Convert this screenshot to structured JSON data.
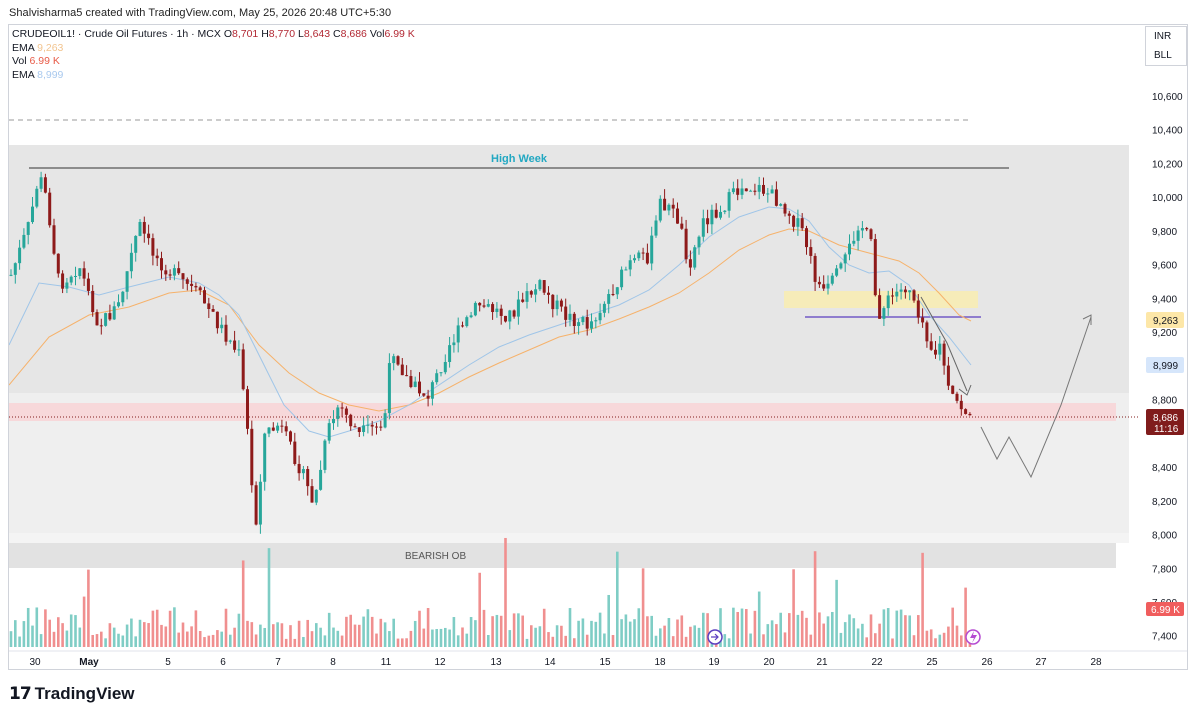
{
  "credit": "Shalvisharma5 created with TradingView.com, May 25, 2026 20:48 UTC+5:30",
  "legend": {
    "symbol": "CRUDEOIL1! · Crude Oil Futures · 1h · MCX",
    "o_label": "O",
    "o_value": "8,701",
    "h_label": "H",
    "h_value": "8,770",
    "l_label": "L",
    "l_value": "8,643",
    "c_label": "C",
    "c_value": "8,686",
    "vol_label": "Vol",
    "vol_value": "6.99 K",
    "ema1_label": "EMA",
    "ema1_value": "9,263",
    "vol2_label": "Vol",
    "vol2_value": "6.99 K",
    "ema2_label": "EMA",
    "ema2_value": "8,999"
  },
  "side_buttons": {
    "currency": "INR",
    "unit": "BLL"
  },
  "annotations": {
    "high_week": "High Week",
    "bearish_ob": "BEARISH OB"
  },
  "price_axis": {
    "ticks": [
      "10,600",
      "10,400",
      "10,200",
      "10,000",
      "9,800",
      "9,600",
      "9,400",
      "9,200",
      "8,800",
      "8,400",
      "8,200",
      "8,000",
      "7,800",
      "7,600",
      "7,400"
    ],
    "tick_values": [
      10600,
      10400,
      10200,
      10000,
      9800,
      9600,
      9400,
      9200,
      8800,
      8400,
      8200,
      8000,
      7800,
      7600,
      7400
    ],
    "ema_slow_label": "9,263",
    "ema_fast_label": "8,999",
    "last_price": "8,686",
    "countdown": "11:16",
    "volume_label": "6.99 K"
  },
  "time_axis": {
    "labels": [
      "30",
      "May",
      "5",
      "6",
      "7",
      "8",
      "11",
      "12",
      "13",
      "14",
      "15",
      "18",
      "19",
      "20",
      "21",
      "22",
      "25",
      "26",
      "27",
      "28"
    ]
  },
  "colors": {
    "up": "#26a69a",
    "down": "#8e1a1a",
    "vol_up": "#7fcdc5",
    "vol_down": "#f08f8f",
    "ema_slow": "#f6b26b",
    "ema_fast": "#9fc5e8",
    "last_price_bg": "#801c1c",
    "ema_slow_bg": "#fde7a8",
    "ema_fast_bg": "#d6e6fb",
    "volume_badge": "#f05d5d"
  },
  "brand": {
    "name": "TradingView"
  }
}
